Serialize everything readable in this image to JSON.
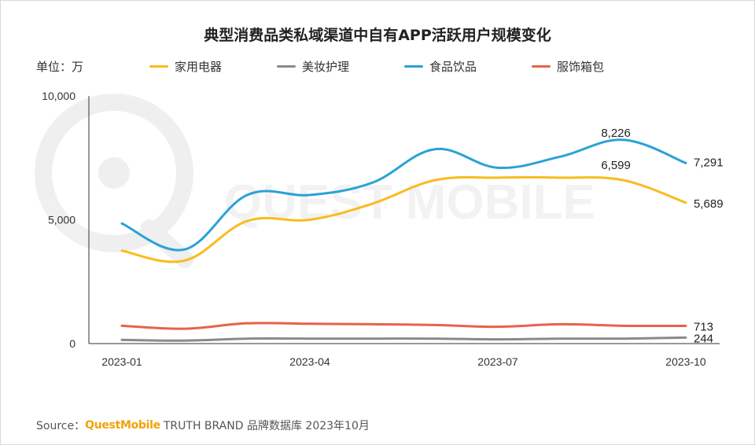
{
  "title": "典型消费品类私域渠道中自有APP活跃用户规模变化",
  "unit_label": "单位：万",
  "watermark_text": "QUEST MOBILE",
  "source": {
    "prefix": "Source：",
    "brand": "QuestMobile",
    "text": "TRUTH BRAND 品牌数据库 2023年10月"
  },
  "colors": {
    "家用电器": "#f9bb1e",
    "美妆护理": "#8a8a8a",
    "食品饮品": "#2aa2d6",
    "服饰箱包": "#e8624a"
  },
  "chart_data": {
    "type": "line",
    "title": "典型消费品类私域渠道中自有APP活跃用户规模变化",
    "xlabel": "",
    "ylabel": "单位：万",
    "ylim": [
      0,
      10000
    ],
    "yticks": [
      0,
      5000,
      10000
    ],
    "ytick_labels": [
      "0",
      "5,000",
      "10,000"
    ],
    "x": [
      "2023-01",
      "2023-02",
      "2023-03",
      "2023-04",
      "2023-05",
      "2023-06",
      "2023-07",
      "2023-08",
      "2023-09",
      "2023-10"
    ],
    "xtick_labels": [
      "2023-01",
      "2023-04",
      "2023-07",
      "2023-10"
    ],
    "series": [
      {
        "name": "家用电器",
        "values": [
          3750,
          3350,
          4950,
          5000,
          5650,
          6600,
          6700,
          6700,
          6599,
          5689
        ],
        "labels": [
          null,
          null,
          null,
          null,
          null,
          null,
          null,
          null,
          "6,599",
          "5,689"
        ]
      },
      {
        "name": "美妆护理",
        "values": [
          150,
          120,
          200,
          200,
          200,
          200,
          170,
          200,
          200,
          244
        ],
        "labels": [
          null,
          null,
          null,
          null,
          null,
          null,
          null,
          null,
          null,
          "244"
        ]
      },
      {
        "name": "食品饮品",
        "values": [
          4850,
          3800,
          6000,
          6000,
          6500,
          7850,
          7100,
          7550,
          8226,
          7291
        ],
        "labels": [
          null,
          null,
          null,
          null,
          null,
          null,
          null,
          null,
          "8,226",
          "7,291"
        ]
      },
      {
        "name": "服饰箱包",
        "values": [
          720,
          600,
          820,
          800,
          780,
          750,
          680,
          780,
          720,
          713
        ],
        "labels": [
          null,
          null,
          null,
          null,
          null,
          null,
          null,
          null,
          null,
          "713"
        ]
      }
    ]
  }
}
